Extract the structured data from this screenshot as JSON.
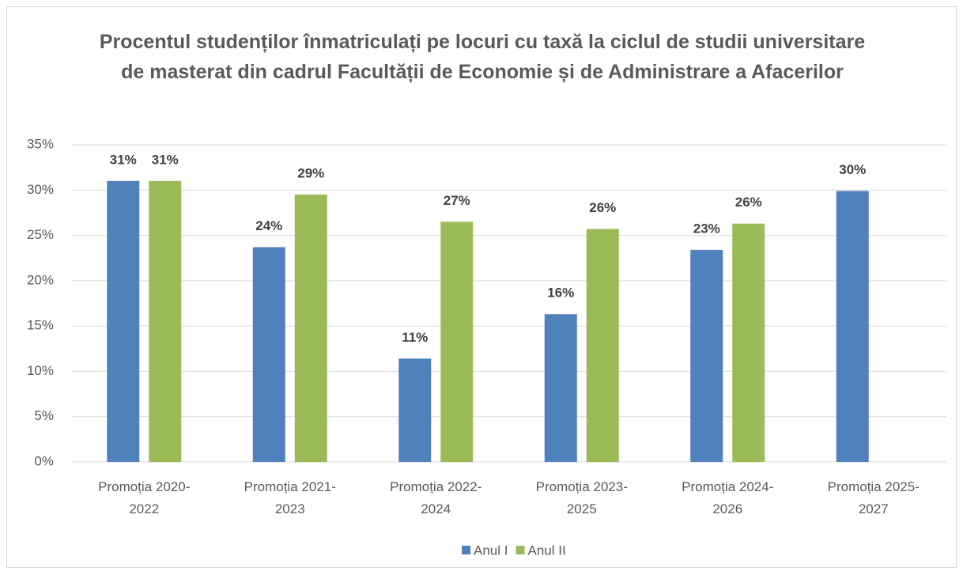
{
  "chart_data": {
    "type": "bar",
    "title": "Procentul studenților înmatriculați pe locuri cu taxă la ciclul de studii universitare de masterat din cadrul Facultății de Economie și de Administrare a Afacerilor",
    "categories": [
      "Promoția 2020-2022",
      "Promoția 2021-2023",
      "Promoția 2022-2024",
      "Promoția 2023-2025",
      "Promoția 2024-2026",
      "Promoția 2025-2027"
    ],
    "series": [
      {
        "name": "Anul I",
        "color": "#4f81bd",
        "values": [
          31.0,
          23.7,
          11.4,
          16.3,
          23.4,
          29.9
        ],
        "value_labels": [
          "31%",
          "24%",
          "11%",
          "16%",
          "23%",
          "30%"
        ]
      },
      {
        "name": "Anul II",
        "color": "#9bbb59",
        "values": [
          31.0,
          29.5,
          26.5,
          25.7,
          26.3,
          null
        ],
        "value_labels": [
          "31%",
          "29%",
          "27%",
          "26%",
          "26%",
          null
        ]
      }
    ],
    "ylim": [
      0,
      35
    ],
    "yticks": [
      {
        "value": 0,
        "label": "0%"
      },
      {
        "value": 5,
        "label": "5%"
      },
      {
        "value": 10,
        "label": "10%"
      },
      {
        "value": 15,
        "label": "15%"
      },
      {
        "value": 20,
        "label": "20%"
      },
      {
        "value": 25,
        "label": "25%"
      },
      {
        "value": 30,
        "label": "30%"
      },
      {
        "value": 35,
        "label": "35%"
      }
    ],
    "grid": true,
    "legend": "bottom"
  }
}
